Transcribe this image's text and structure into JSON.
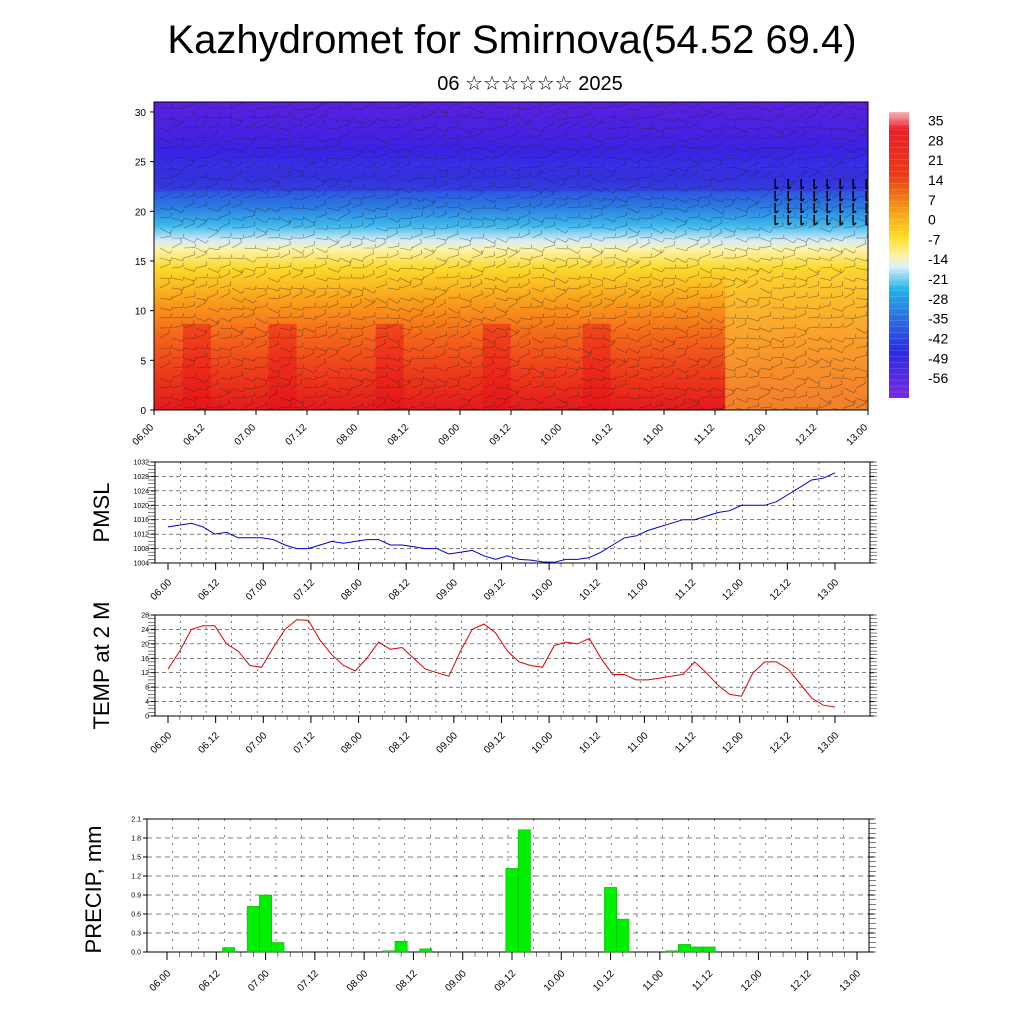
{
  "title": "Kazhydromet for Smirnova(54.52 69.4)",
  "subtitle": "06 ☆☆☆☆☆☆ 2025",
  "time_labels": [
    "06.00",
    "06.12",
    "07.00",
    "07.12",
    "08.00",
    "08.12",
    "09.00",
    "09.12",
    "10.00",
    "10.12",
    "11.00",
    "11.12",
    "12.00",
    "12.12",
    "13.00"
  ],
  "chart_data": [
    {
      "type": "heatmap",
      "title": "",
      "xlabel": "",
      "ylabel": "",
      "x": [
        "06.00",
        "06.12",
        "07.00",
        "07.12",
        "08.00",
        "08.12",
        "09.00",
        "09.12",
        "10.00",
        "10.12",
        "11.00",
        "11.12",
        "12.00",
        "12.12",
        "13.00"
      ],
      "y_ticks": [
        0,
        5,
        10,
        15,
        20,
        25,
        30
      ],
      "ylim": [
        0,
        31
      ],
      "colorbar_labels": [
        "35",
        "28",
        "21",
        "14",
        "7",
        "0",
        "-7",
        "-14",
        "-21",
        "-28",
        "-35",
        "-42",
        "-49",
        "-56"
      ],
      "colorbar_range": [
        -63,
        38
      ],
      "approx_layers": {
        "surface_warm_max": 35,
        "top_cold_min": -60,
        "freezing_level_height_start": 17,
        "freezing_level_height_end": 14
      },
      "overlay": "wind barbs"
    },
    {
      "type": "line",
      "ylabel": "PMSL",
      "ylim": [
        1004,
        1032
      ],
      "y_ticks": [
        "1004",
        "1008",
        "1012",
        "1016",
        "1020",
        "1024",
        "1028",
        "1032"
      ],
      "color": "#0000cc",
      "values": [
        1014,
        1014.5,
        1015,
        1014,
        1012,
        1012.5,
        1011,
        1011,
        1011,
        1010.5,
        1009,
        1008,
        1008,
        1009,
        1010,
        1009.5,
        1010,
        1010.5,
        1010.5,
        1009,
        1009,
        1008.5,
        1008,
        1008,
        1006.5,
        1007,
        1007.5,
        1006,
        1005,
        1006,
        1005,
        1004.8,
        1004.3,
        1004.2,
        1005,
        1005,
        1005.5,
        1007,
        1009,
        1011,
        1011.5,
        1013,
        1014,
        1015,
        1016,
        1016,
        1017,
        1018,
        1018.5,
        1020,
        1020,
        1020,
        1021,
        1023,
        1025,
        1027,
        1027.5,
        1029
      ]
    },
    {
      "type": "line",
      "ylabel": "TEMP at 2 M",
      "ylim": [
        0,
        28
      ],
      "y_ticks": [
        "0",
        "4",
        "8",
        "12",
        "16",
        "20",
        "24",
        "28"
      ],
      "color": "#dd0000",
      "values": [
        13,
        18,
        24,
        25,
        25,
        20,
        18,
        14,
        13.5,
        19,
        24,
        26.7,
        26.5,
        21,
        17,
        14,
        12.5,
        16,
        20.5,
        18.5,
        19,
        16,
        13,
        12,
        11,
        18,
        24,
        25.5,
        23,
        18,
        15,
        14,
        13.5,
        19.5,
        20.5,
        20,
        21.5,
        16,
        11.5,
        11.5,
        10,
        10,
        10.5,
        11,
        11.5,
        15,
        12,
        8.5,
        6,
        5.5,
        12,
        15,
        15,
        13,
        9,
        5,
        3,
        2.5
      ]
    },
    {
      "type": "bar",
      "ylabel": "PRECIP, mm",
      "ylim": [
        0,
        2.1
      ],
      "y_ticks": [
        "0.0",
        "0.3",
        "0.6",
        "0.9",
        "1.2",
        "1.5",
        "1.8",
        "2.1"
      ],
      "color": "#00ee00",
      "x_start": "06.00",
      "step_hours": 3,
      "values": [
        0,
        0,
        0,
        0,
        0,
        0.07,
        0,
        0.72,
        0.9,
        0.15,
        0,
        0,
        0,
        0,
        0,
        0,
        0,
        0,
        0.02,
        0.17,
        0,
        0.05,
        0,
        0,
        0,
        0,
        0,
        0,
        1.32,
        1.93,
        0,
        0,
        0,
        0,
        0,
        0,
        1.02,
        0.52,
        0,
        0,
        0,
        0.02,
        0.12,
        0.08,
        0.08,
        0,
        0,
        0,
        0,
        0,
        0,
        0,
        0,
        0,
        0,
        0,
        0
      ]
    }
  ]
}
